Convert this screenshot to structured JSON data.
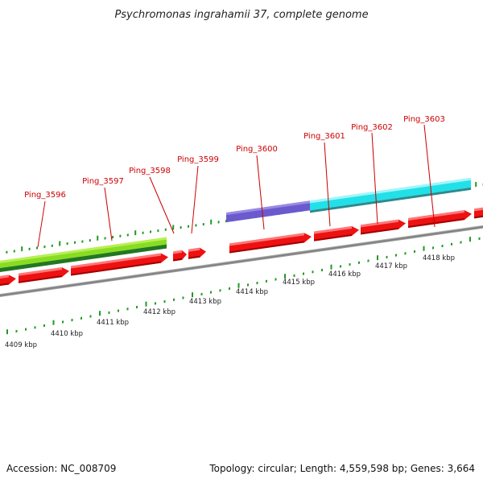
{
  "map": {
    "title": "Psychromonas ingrahamii 37, complete genome",
    "accession_text": "Accession: NC_008709",
    "summary_text": "Topology: circular; Length: 4,559,598 bp; Genes: 3,664",
    "gene_labels": [
      "Ping_3596",
      "Ping_3597",
      "Ping_3598",
      "Ping_3599",
      "Ping_3600",
      "Ping_3601",
      "Ping_3602",
      "Ping_3603"
    ],
    "kbp_labels": [
      "4409 kbp",
      "4410 kbp",
      "4411 kbp",
      "4412 kbp",
      "4413 kbp",
      "4414 kbp",
      "4415 kbp",
      "4416 kbp",
      "4417 kbp",
      "4418 kbp"
    ],
    "colors": {
      "cds": "#ee1111",
      "feature_green": "#88dd22",
      "feature_purple": "#6a5acd",
      "feature_cyan": "#22e0e8",
      "tick": "#229922",
      "backbone": "#888888",
      "label": "#cc0000"
    }
  }
}
